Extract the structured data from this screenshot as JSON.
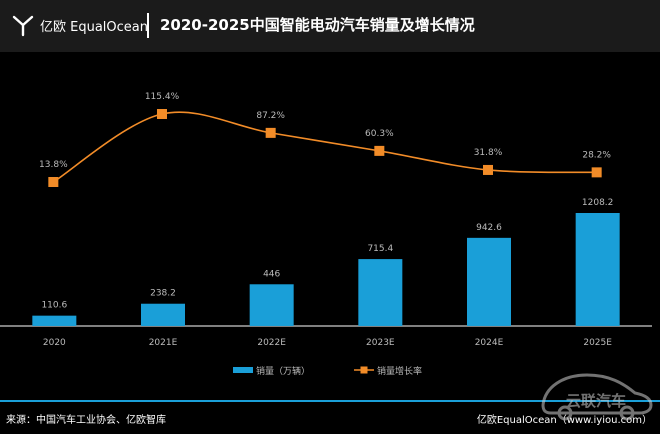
{
  "header": {
    "brand": "亿欧 EqualOcean",
    "title": "2020-2025中国智能电动汽车销量及增长情况"
  },
  "footer": {
    "source": "来源：中国汽车工业协会、亿欧智库",
    "brand": "亿欧EqualOcean（www.iyiou.com）",
    "watermark_text": "云联汽车"
  },
  "colors": {
    "background": "#000000",
    "header_bg": "#1b1b1b",
    "bar": "#1a9fd8",
    "line": "#f28c28",
    "text": "#ffffff",
    "label": "#bbbbbb"
  },
  "chart_data": {
    "type": "bar",
    "categories": [
      "2020",
      "2021E",
      "2022E",
      "2023E",
      "2024E",
      "2025E"
    ],
    "series": [
      {
        "name": "销量（万辆）",
        "type": "bar",
        "values": [
          110.6,
          238.2,
          446,
          715.4,
          942.6,
          1208.2
        ],
        "labels": [
          "110.6",
          "238.2",
          "446",
          "715.4",
          "942.6",
          "1208.2"
        ]
      },
      {
        "name": "销量增长率",
        "type": "line",
        "values": [
          13.8,
          115.4,
          87.2,
          60.3,
          31.8,
          28.2
        ],
        "labels": [
          "13.8%",
          "115.4%",
          "87.2%",
          "60.3%",
          "31.8%",
          "28.2%"
        ]
      }
    ],
    "legend_position": "bottom-center",
    "grid": false
  }
}
